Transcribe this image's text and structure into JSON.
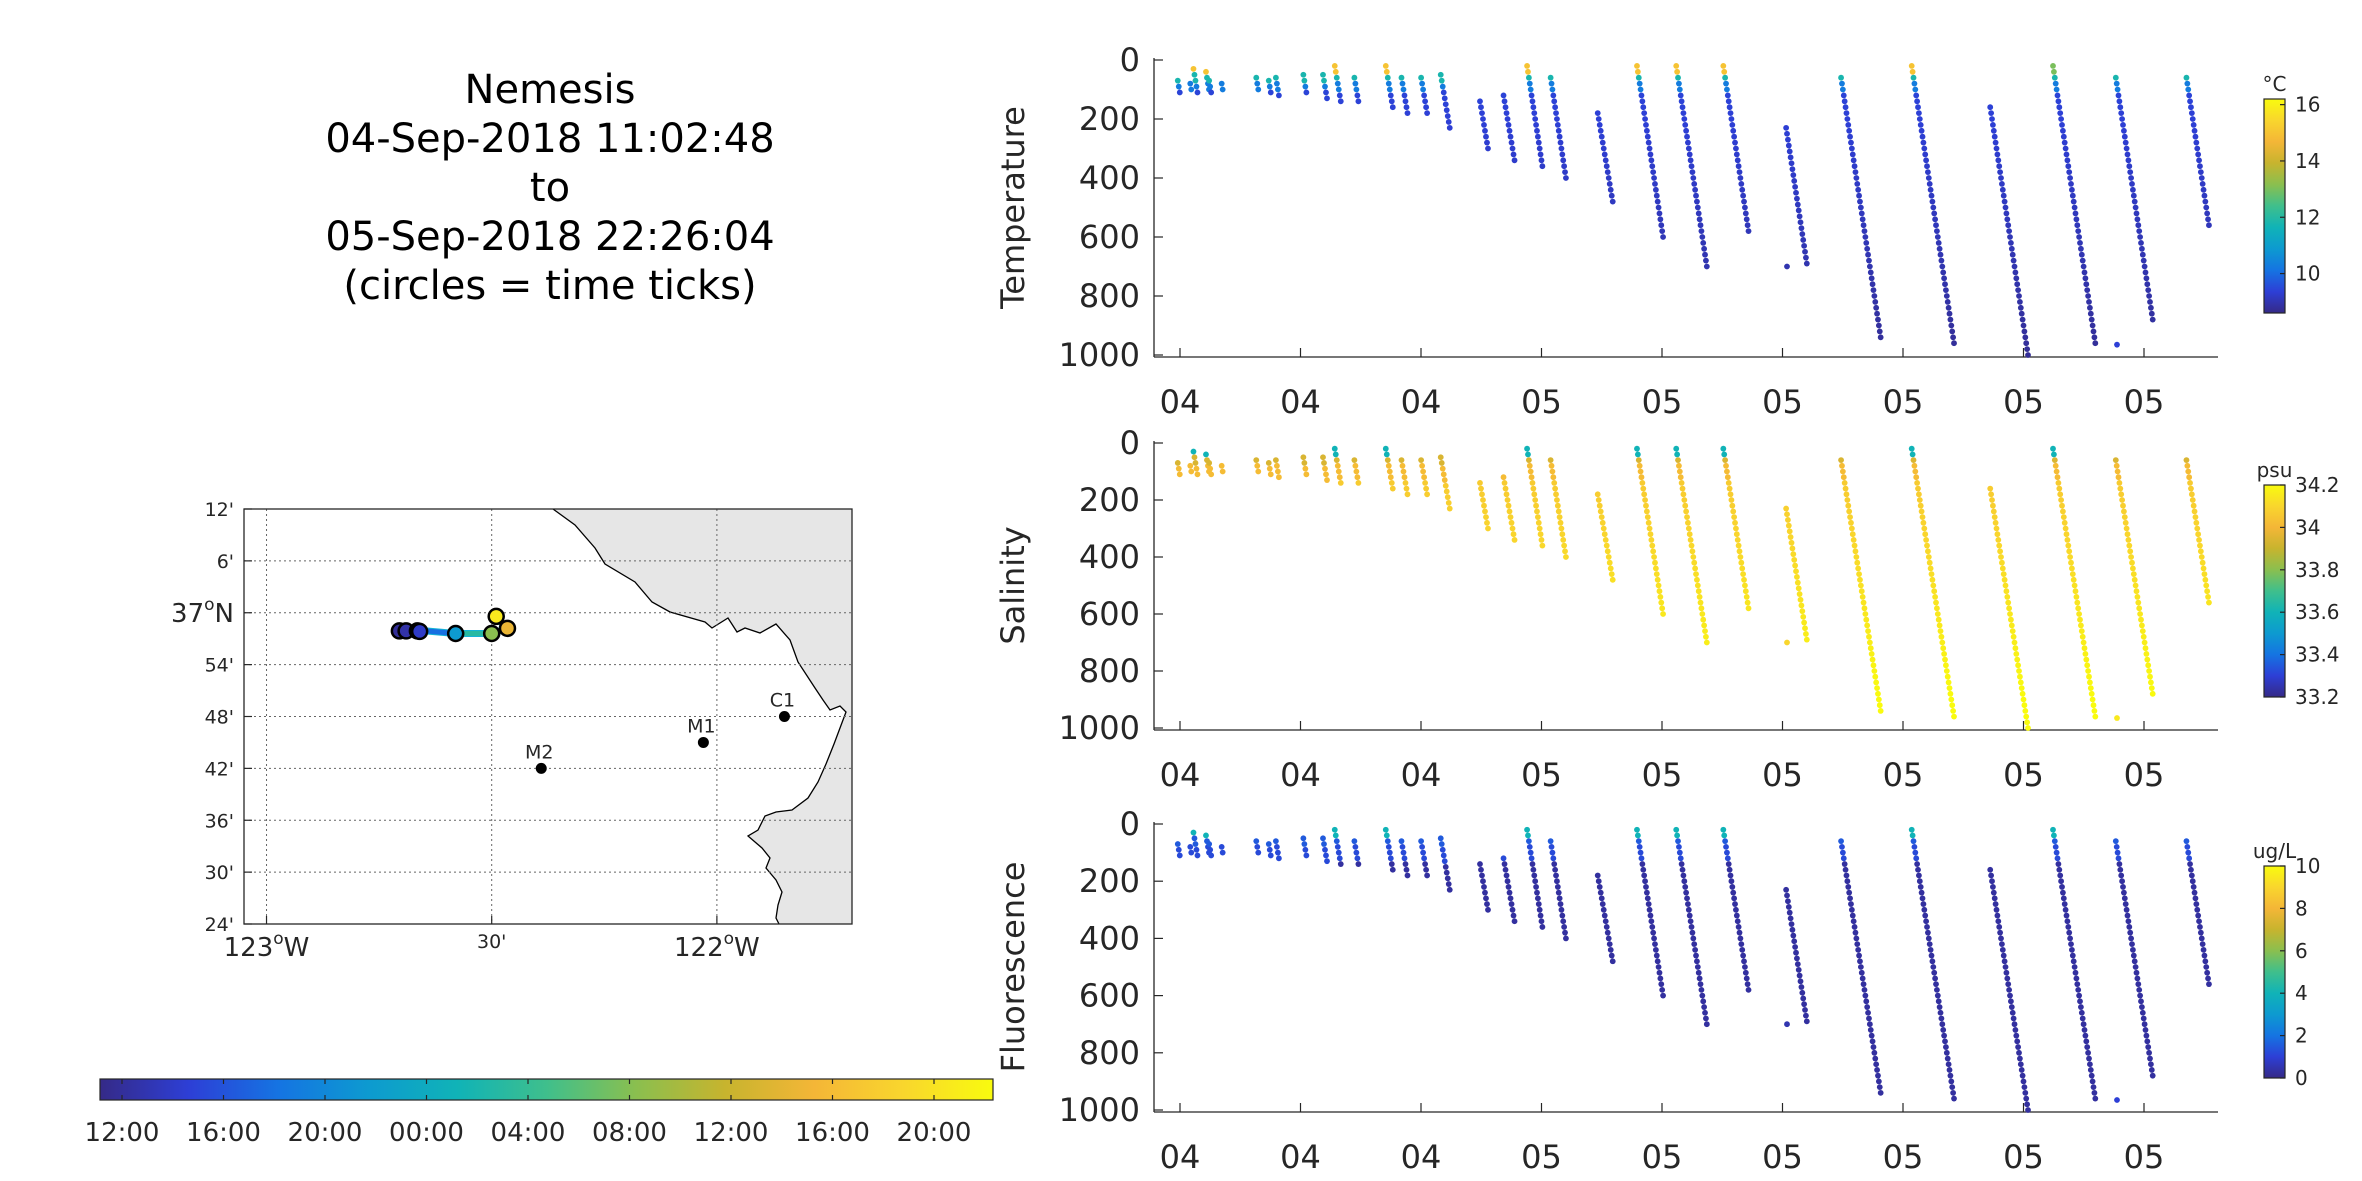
{
  "title": {
    "lines": [
      "Nemesis",
      "04-Sep-2018 11:02:48",
      "to",
      "05-Sep-2018 22:26:04",
      "(circles = time ticks)"
    ]
  },
  "colors": {
    "parula": [
      "#352a87",
      "#2d3fd6",
      "#1574e2",
      "#0d9ad0",
      "#10b3b7",
      "#3fbf8c",
      "#8abf4f",
      "#c7b42e",
      "#f4b637",
      "#f9d62d",
      "#f9fb0e"
    ],
    "land": "#e6e6e6",
    "track_line": "#15b3d6"
  },
  "map": {
    "lat_tick_labels": [
      "12'",
      "6'",
      "37°N",
      "54'",
      "48'",
      "42'",
      "36'",
      "30'",
      "24'"
    ],
    "lon_tick_labels": [
      "123°W",
      "30'",
      "122°W"
    ],
    "stations": [
      {
        "name": "C1",
        "lon": -121.85,
        "lat": 36.8
      },
      {
        "name": "M1",
        "lon": -122.03,
        "lat": 36.75
      },
      {
        "name": "M2",
        "lon": -122.39,
        "lat": 36.7
      }
    ],
    "track": [
      {
        "lon": -122.705,
        "lat": 36.965,
        "t": 0.0
      },
      {
        "lon": -122.69,
        "lat": 36.965,
        "t": 0.03
      },
      {
        "lon": -122.66,
        "lat": 36.966,
        "t": 0.08
      },
      {
        "lon": -122.58,
        "lat": 36.96,
        "t": 0.3
      },
      {
        "lon": -122.5,
        "lat": 36.96,
        "t": 0.6
      },
      {
        "lon": -122.465,
        "lat": 36.97,
        "t": 0.78
      },
      {
        "lon": -122.49,
        "lat": 36.99,
        "t": 0.9
      },
      {
        "lon": -122.49,
        "lat": 36.995,
        "t": 1.0
      }
    ],
    "time_ticks": [
      {
        "lon": -122.705,
        "lat": 36.965,
        "t": 0.02
      },
      {
        "lon": -122.69,
        "lat": 36.965,
        "t": 0.04
      },
      {
        "lon": -122.665,
        "lat": 36.965,
        "t": 0.06
      },
      {
        "lon": -122.66,
        "lat": 36.964,
        "t": 0.08
      },
      {
        "lon": -122.58,
        "lat": 36.96,
        "t": 0.3
      },
      {
        "lon": -122.5,
        "lat": 36.96,
        "t": 0.6
      },
      {
        "lon": -122.465,
        "lat": 36.97,
        "t": 0.78
      },
      {
        "lon": -122.49,
        "lat": 36.993,
        "t": 0.95
      }
    ]
  },
  "time_colorbar": {
    "tick_labels": [
      "12:00",
      "16:00",
      "20:00",
      "00:00",
      "04:00",
      "08:00",
      "12:00",
      "16:00",
      "20:00"
    ]
  },
  "chart_data": [
    {
      "type": "scatter",
      "ylabel": "Temperature",
      "units": "°C",
      "colorbar_ticks": [
        "10",
        "12",
        "14",
        "16"
      ],
      "clim": [
        8.6,
        16.2
      ],
      "ylim": [
        0,
        1000
      ],
      "y_tick_labels": [
        "0",
        "200",
        "400",
        "600",
        "800",
        "1000"
      ],
      "x_tick_labels": [
        "04",
        "04",
        "04",
        "05",
        "05",
        "05",
        "05",
        "05",
        "05"
      ],
      "profiles": [
        {
          "x": 0.3,
          "min_depth": 70,
          "max_depth": 110,
          "surface_value": 14
        },
        {
          "x": 0.7,
          "min_depth": 30,
          "max_depth": 110,
          "surface_value": 15
        },
        {
          "x": 1.1,
          "min_depth": 70,
          "max_depth": 110,
          "surface_value": 13
        },
        {
          "x": 2.3,
          "min_depth": 60,
          "max_depth": 110,
          "surface_value": 11
        },
        {
          "x": 2.8,
          "min_depth": 60,
          "max_depth": 120,
          "surface_value": 11
        },
        {
          "x": 3.5,
          "min_depth": 50,
          "max_depth": 120,
          "surface_value": 11
        },
        {
          "x": 4.0,
          "min_depth": 50,
          "max_depth": 130,
          "surface_value": 11
        },
        {
          "x": 4.3,
          "min_depth": 20,
          "max_depth": 140,
          "surface_value": 15
        },
        {
          "x": 4.8,
          "min_depth": 60,
          "max_depth": 150,
          "surface_value": 11
        },
        {
          "x": 5.6,
          "min_depth": 20,
          "max_depth": 170,
          "surface_value": 15
        },
        {
          "x": 6.0,
          "min_depth": 60,
          "max_depth": 190,
          "surface_value": 11
        },
        {
          "x": 6.5,
          "min_depth": 60,
          "max_depth": 180,
          "surface_value": 11
        },
        {
          "x": 7.0,
          "min_depth": 50,
          "max_depth": 240,
          "surface_value": 11
        },
        {
          "x": 8.0,
          "min_depth": 140,
          "max_depth": 300,
          "surface_value": 9
        },
        {
          "x": 8.6,
          "min_depth": 120,
          "max_depth": 340,
          "surface_value": 10
        },
        {
          "x": 9.2,
          "min_depth": 20,
          "max_depth": 360,
          "surface_value": 15
        },
        {
          "x": 9.8,
          "min_depth": 60,
          "max_depth": 410,
          "surface_value": 11
        },
        {
          "x": 11.0,
          "min_depth": 180,
          "max_depth": 480,
          "surface_value": 9
        },
        {
          "x": 12.0,
          "min_depth": 20,
          "max_depth": 600,
          "surface_value": 15
        },
        {
          "x": 13.0,
          "min_depth": 20,
          "max_depth": 700,
          "surface_value": 15
        },
        {
          "x": 14.2,
          "min_depth": 20,
          "max_depth": 580,
          "surface_value": 15
        },
        {
          "x": 15.8,
          "min_depth": 230,
          "max_depth": 700,
          "surface_value": 9
        },
        {
          "x": 17.2,
          "min_depth": 60,
          "max_depth": 950,
          "surface_value": 11
        },
        {
          "x": 19.0,
          "min_depth": 20,
          "max_depth": 960,
          "surface_value": 15
        },
        {
          "x": 21.0,
          "min_depth": 160,
          "max_depth": 1000,
          "surface_value": 9
        },
        {
          "x": 22.6,
          "min_depth": 20,
          "max_depth": 970,
          "surface_value": 13
        },
        {
          "x": 24.2,
          "min_depth": 60,
          "max_depth": 890,
          "surface_value": 11
        },
        {
          "x": 26.0,
          "min_depth": 60,
          "max_depth": 570,
          "surface_value": 11
        }
      ]
    },
    {
      "type": "scatter",
      "ylabel": "Salinity",
      "units": "psu",
      "colorbar_ticks": [
        "33.2",
        "33.4",
        "33.6",
        "33.8",
        "34",
        "34.2"
      ],
      "clim": [
        33.2,
        34.2
      ],
      "ylim": [
        0,
        1000
      ],
      "y_tick_labels": [
        "0",
        "200",
        "400",
        "600",
        "800",
        "1000"
      ],
      "x_tick_labels": [
        "04",
        "04",
        "04",
        "05",
        "05",
        "05",
        "05",
        "05",
        "05"
      ],
      "deep_value": 34.2,
      "shallow_value": 33.6
    },
    {
      "type": "scatter",
      "ylabel": "Fluorescence",
      "units": "ug/L",
      "colorbar_ticks": [
        "0",
        "2",
        "4",
        "6",
        "8",
        "10"
      ],
      "clim": [
        0,
        10
      ],
      "ylim": [
        0,
        1000
      ],
      "y_tick_labels": [
        "0",
        "200",
        "400",
        "600",
        "800",
        "1000"
      ],
      "x_tick_labels": [
        "04",
        "04",
        "04",
        "05",
        "05",
        "05",
        "05",
        "05",
        "05"
      ],
      "deep_value": 0.3,
      "shallow_value": 4
    }
  ]
}
